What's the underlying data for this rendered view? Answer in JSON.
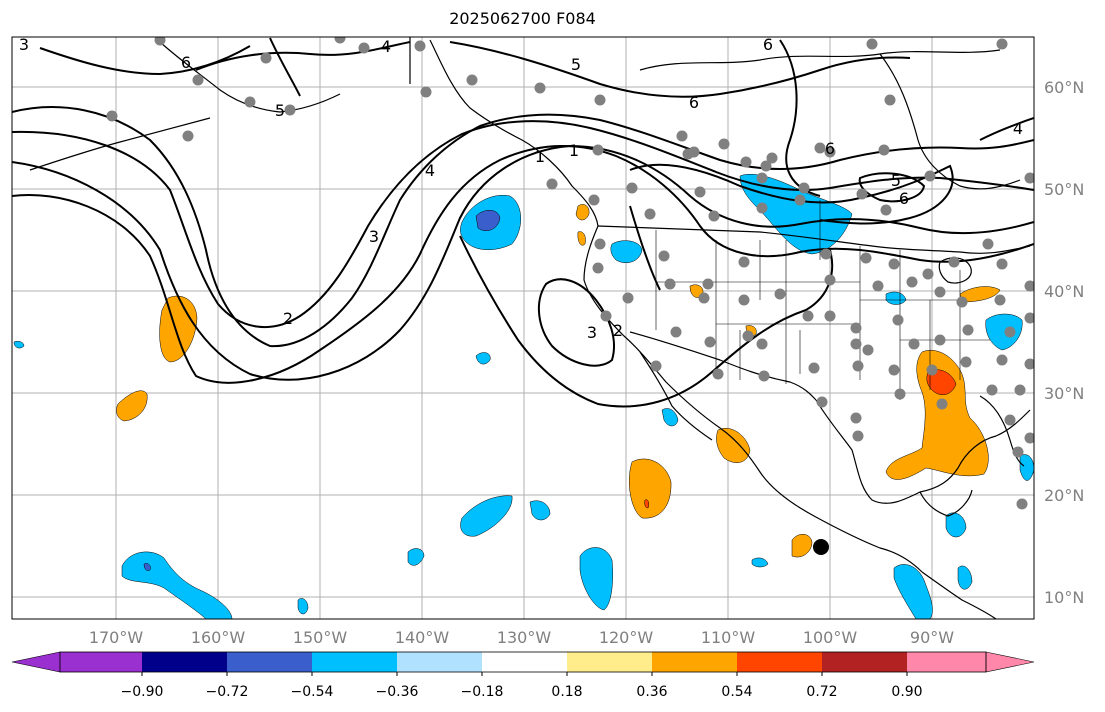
{
  "title": "2025062700 F084",
  "map": {
    "lon_labels": [
      "170°W",
      "160°W",
      "150°W",
      "140°W",
      "130°W",
      "120°W",
      "110°W",
      "100°W",
      "90°W"
    ],
    "lat_labels": [
      "60°N",
      "50°N",
      "40°N",
      "30°N",
      "20°N",
      "10°N"
    ],
    "contour_labels": [
      "3",
      "6",
      "4",
      "5",
      "6",
      "6",
      "1",
      "4",
      "5",
      "6",
      "3",
      "2",
      "3",
      "2",
      "1",
      "5",
      "6",
      "4"
    ],
    "colors": {
      "axes_label": "#808080",
      "grid": "#b0b0b0",
      "contour": "#000000"
    }
  },
  "colorbar": {
    "tick_labels": [
      "−0.90",
      "−0.72",
      "−0.54",
      "−0.36",
      "−0.18",
      "0.18",
      "0.36",
      "0.54",
      "0.72",
      "0.90"
    ],
    "colors": [
      "#9b30d0",
      "#00008b",
      "#3a5fcd",
      "#00bfff",
      "#b0e2ff",
      "#ffffff",
      "#ffec8b",
      "#ffa500",
      "#ff4500",
      "#b22222",
      "#ff88aa"
    ]
  }
}
